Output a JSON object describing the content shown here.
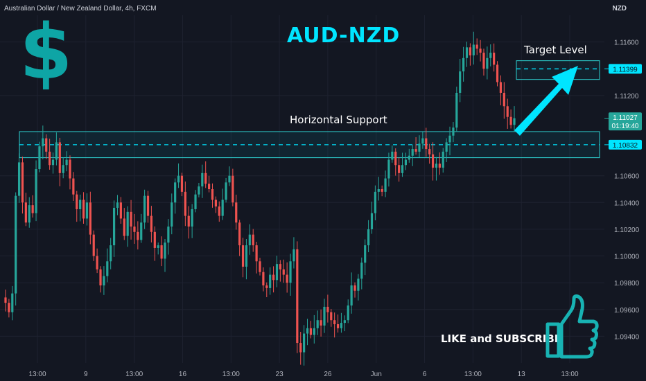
{
  "header": {
    "symbol_text": "Australian Dollar / New Zealand Dollar, 4h, FXCM",
    "currency": "NZD"
  },
  "overlay": {
    "title": "AUD-NZD",
    "dollar_sign": "$",
    "support_label": "Horizontal Support",
    "target_label": "Target Level",
    "cta": "LIKE and SUBSCRIBE"
  },
  "colors": {
    "background": "#131722",
    "bull": "#26a69a",
    "bear": "#ef5350",
    "accent": "#00e5ff",
    "zone_border": "#2ed3d3"
  },
  "icons": [
    "dollar-icon",
    "thumbs-up-icon",
    "arrow-up-right-icon"
  ],
  "chart_data": {
    "type": "candlestick",
    "ylim": [
      1.092,
      1.118
    ],
    "price_ticks": [
      "1.11600",
      "1.11200",
      "1.10600",
      "1.10400",
      "1.10200",
      "1.10000",
      "1.09800",
      "1.09600",
      "1.09400"
    ],
    "time_ticks": [
      "13:00",
      "9",
      "13:00",
      "16",
      "13:00",
      "23",
      "26",
      "Jun",
      "6",
      "13:00",
      "13",
      "13:00"
    ],
    "price_labels": [
      {
        "text": "1.11399",
        "value": 1.11399,
        "style": "cyan"
      },
      {
        "text": "1.11027",
        "sub": "01:19:40",
        "value": 1.11027,
        "style": "green"
      },
      {
        "text": "1.10832",
        "value": 1.10832,
        "style": "cyan"
      }
    ],
    "support_zone": {
      "high": 1.1093,
      "low": 1.10735,
      "line": 1.10832
    },
    "target_zone": {
      "high": 1.1146,
      "low": 1.1132,
      "line": 1.11399
    },
    "closes": [
      1.0965,
      1.0958,
      1.0972,
      1.1045,
      1.107,
      1.104,
      1.1025,
      1.1038,
      1.1032,
      1.1065,
      1.1082,
      1.1088,
      1.1078,
      1.1068,
      1.1072,
      1.1085,
      1.1062,
      1.1068,
      1.1072,
      1.1058,
      1.1046,
      1.1035,
      1.1042,
      1.1028,
      1.104,
      1.1016,
      1.1,
      1.099,
      1.0978,
      1.0985,
      1.0996,
      1.1008,
      1.1036,
      1.104,
      1.1028,
      1.1015,
      1.1033,
      1.1022,
      1.1018,
      1.1012,
      1.1025,
      1.1045,
      1.103,
      1.1018,
      1.1006,
      1.1008,
      1.0998,
      1.101,
      1.1022,
      1.104,
      1.1055,
      1.106,
      1.1048,
      1.103,
      1.1022,
      1.1035,
      1.1046,
      1.1052,
      1.1062,
      1.1054,
      1.105,
      1.1042,
      1.1037,
      1.103,
      1.1042,
      1.1055,
      1.106,
      1.104,
      1.1025,
      1.1008,
      1.0992,
      1.1008,
      1.1016,
      1.1008,
      1.0996,
      1.0988,
      1.0978,
      1.0976,
      1.0986,
      1.0982,
      1.0994,
      1.099,
      1.0986,
      1.098,
      1.0996,
      1.1005,
      1.0935,
      1.0928,
      1.0942,
      1.0946,
      1.0941,
      1.0946,
      1.0952,
      1.0948,
      1.0962,
      1.0958,
      1.0952,
      1.0949,
      1.0946,
      1.095,
      1.0952,
      1.0963,
      1.0978,
      1.0974,
      1.0983,
      1.0995,
      1.1008,
      1.102,
      1.1032,
      1.1048,
      1.105,
      1.1048,
      1.1058,
      1.1072,
      1.1078,
      1.1068,
      1.1062,
      1.1068,
      1.1072,
      1.1075,
      1.108,
      1.1078,
      1.1084,
      1.1088,
      1.108,
      1.1076,
      1.1066,
      1.1069,
      1.1066,
      1.1078,
      1.1085,
      1.109,
      1.1096,
      1.1122,
      1.1138,
      1.1148,
      1.1156,
      1.115,
      1.1158,
      1.1155,
      1.1152,
      1.114,
      1.1148,
      1.1152,
      1.1143,
      1.113,
      1.1122,
      1.1112,
      1.1104,
      1.1098,
      1.1103
    ]
  }
}
